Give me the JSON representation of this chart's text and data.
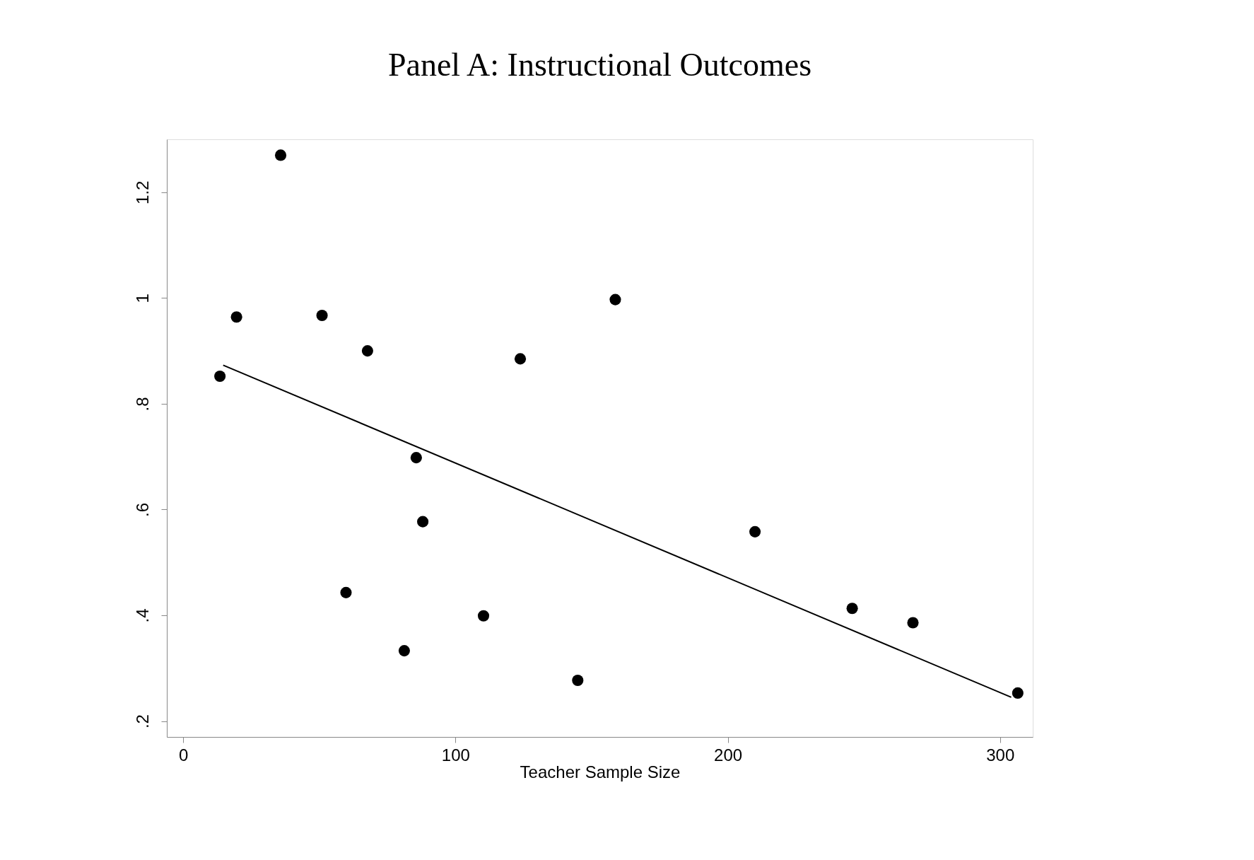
{
  "chart_data": {
    "type": "scatter",
    "title": "Panel A: Instructional Outcomes",
    "xlabel": "Teacher Sample Size",
    "xlim": [
      -6,
      312
    ],
    "ylim": [
      0.17,
      1.3
    ],
    "xticks": [
      0,
      100,
      200,
      300
    ],
    "yticks": [
      {
        "value": 0.2,
        "label": ".2"
      },
      {
        "value": 0.4,
        "label": ".4"
      },
      {
        "value": 0.6,
        "label": ".6"
      },
      {
        "value": 0.8,
        "label": ".8"
      },
      {
        "value": 1,
        "label": "1"
      },
      {
        "value": 1.2,
        "label": "1.2"
      }
    ],
    "grid": false,
    "series": [
      {
        "marker": "circle",
        "color": "#000000",
        "x": [
          13.5,
          19.6,
          35.8,
          51.0,
          67.7,
          59.8,
          85.6,
          88.0,
          81.2,
          110.3,
          123.8,
          144.9,
          158.7,
          210.0,
          245.7,
          268.0,
          306.5
        ],
        "values": [
          0.852,
          0.964,
          1.27,
          0.967,
          0.9,
          0.443,
          0.698,
          0.577,
          0.333,
          0.399,
          0.885,
          0.277,
          0.997,
          0.558,
          0.413,
          0.386,
          0.253
        ]
      },
      {
        "type": "line",
        "color": "#000000",
        "x": [
          14.7,
          304.1
        ],
        "values": [
          0.873,
          0.245
        ]
      }
    ]
  }
}
